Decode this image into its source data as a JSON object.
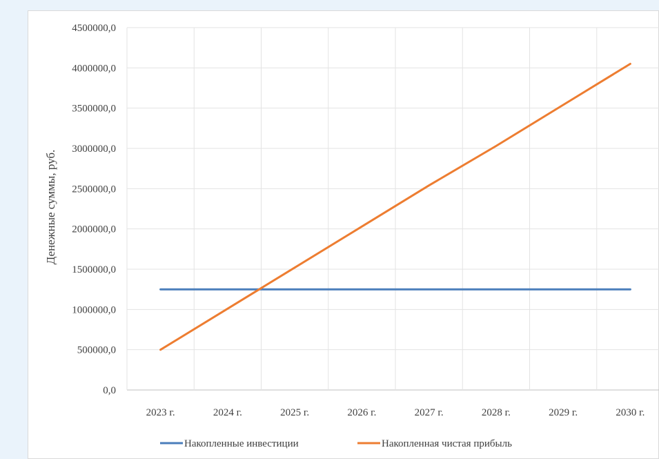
{
  "chart_data": {
    "type": "line",
    "title": "",
    "xlabel": "",
    "ylabel": "Денежные суммы, руб.",
    "categories": [
      "2023 г.",
      "2024 г.",
      "2025 г.",
      "2026 г.",
      "2027 г.",
      "2028 г.",
      "2029 г.",
      "2030 г."
    ],
    "ylim": [
      0,
      4500000
    ],
    "ytick_labels": [
      "0,0",
      "500000,0",
      "1000000,0",
      "1500000,0",
      "2000000,0",
      "2500000,0",
      "3000000,0",
      "3500000,0",
      "4000000,0",
      "4500000,0"
    ],
    "grid": true,
    "legend_position": "bottom",
    "series": [
      {
        "name": "Накопленные инвестиции",
        "color": "#4a7ebb",
        "values": [
          1250000,
          1250000,
          1250000,
          1250000,
          1250000,
          1250000,
          1250000,
          1250000
        ]
      },
      {
        "name": "Накопленная чистая прибыль",
        "color": "#ed7d31",
        "values": [
          500000,
          1010000,
          1520000,
          2030000,
          2540000,
          3030000,
          3540000,
          4050000
        ]
      }
    ]
  }
}
